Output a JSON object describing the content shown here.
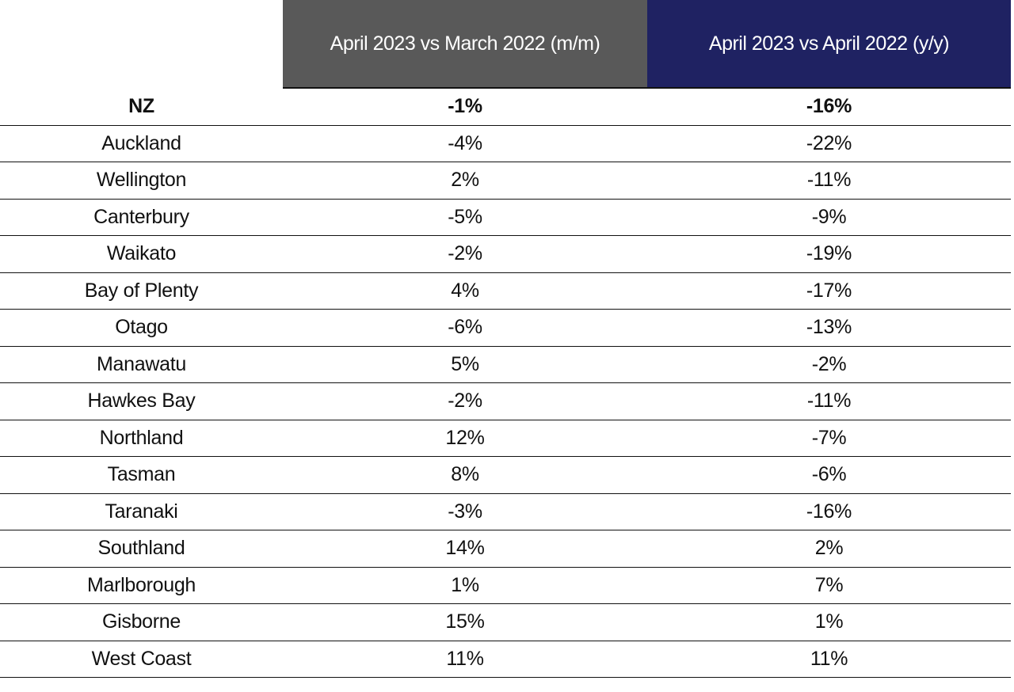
{
  "header": {
    "col1": "April 2023 vs March 2022 (m/m)",
    "col2": "April 2023 vs April 2022 (y/y)"
  },
  "colors": {
    "col1_header": "#595959",
    "col2_header": "#1f2262"
  },
  "rows": [
    {
      "region": "NZ",
      "mm": "-1%",
      "yy": "-16%"
    },
    {
      "region": "Auckland",
      "mm": "-4%",
      "yy": "-22%"
    },
    {
      "region": "Wellington",
      "mm": "2%",
      "yy": "-11%"
    },
    {
      "region": "Canterbury",
      "mm": "-5%",
      "yy": "-9%"
    },
    {
      "region": "Waikato",
      "mm": "-2%",
      "yy": "-19%"
    },
    {
      "region": "Bay of Plenty",
      "mm": "4%",
      "yy": "-17%"
    },
    {
      "region": "Otago",
      "mm": "-6%",
      "yy": "-13%"
    },
    {
      "region": "Manawatu",
      "mm": "5%",
      "yy": "-2%"
    },
    {
      "region": "Hawkes Bay",
      "mm": "-2%",
      "yy": "-11%"
    },
    {
      "region": "Northland",
      "mm": "12%",
      "yy": "-7%"
    },
    {
      "region": "Tasman",
      "mm": "8%",
      "yy": "-6%"
    },
    {
      "region": "Taranaki",
      "mm": "-3%",
      "yy": "-16%"
    },
    {
      "region": "Southland",
      "mm": "14%",
      "yy": "2%"
    },
    {
      "region": "Marlborough",
      "mm": "1%",
      "yy": "7%"
    },
    {
      "region": "Gisborne",
      "mm": "15%",
      "yy": "1%"
    },
    {
      "region": "West Coast",
      "mm": "11%",
      "yy": "11%"
    }
  ]
}
